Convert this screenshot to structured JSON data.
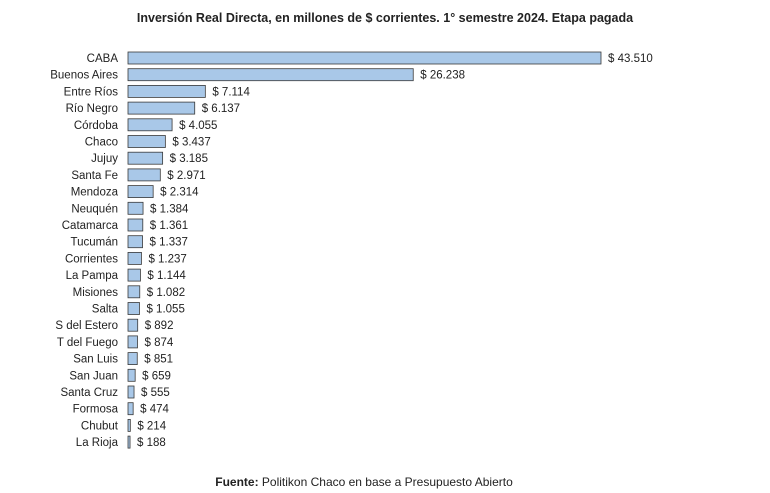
{
  "chart_data": {
    "type": "bar",
    "orientation": "horizontal",
    "title": "Inversión Real Directa, en millones de $ corrientes. 1° semestre 2024. Etapa pagada",
    "categories": [
      "CABA",
      "Buenos Aires",
      "Entre Ríos",
      "Río Negro",
      "Córdoba",
      "Chaco",
      "Jujuy",
      "Santa Fe",
      "Mendoza",
      "Neuquén",
      "Catamarca",
      "Tucumán",
      "Corrientes",
      "La Pampa",
      "Misiones",
      "Salta",
      "S del Estero",
      "T del Fuego",
      "San Luis",
      "San Juan",
      "Santa Cruz",
      "Formosa",
      "Chubut",
      "La Rioja"
    ],
    "values": [
      43510,
      26238,
      7114,
      6137,
      4055,
      3437,
      3185,
      2971,
      2314,
      1384,
      1361,
      1337,
      1237,
      1144,
      1082,
      1055,
      892,
      874,
      851,
      659,
      555,
      474,
      214,
      188
    ],
    "data_labels": [
      "$ 43.510",
      "$ 26.238",
      "$ 7.114",
      "$ 6.137",
      "$ 4.055",
      "$ 3.437",
      "$ 3.185",
      "$ 2.971",
      "$ 2.314",
      "$ 1.384",
      "$ 1.361",
      "$ 1.337",
      "$ 1.237",
      "$ 1.144",
      "$ 1.082",
      "$ 1.055",
      "$ 892",
      "$ 874",
      "$ 851",
      "$ 659",
      "$ 555",
      "$ 474",
      "$ 214",
      "$ 188"
    ],
    "xlim": [
      0,
      43510
    ],
    "grid": false,
    "legend": "none",
    "bar_color": "#a9c8e8",
    "bar_border": "#3a3a3a"
  },
  "source": {
    "label": "Fuente:",
    "text": " Politikon Chaco en base a Presupuesto Abierto"
  }
}
